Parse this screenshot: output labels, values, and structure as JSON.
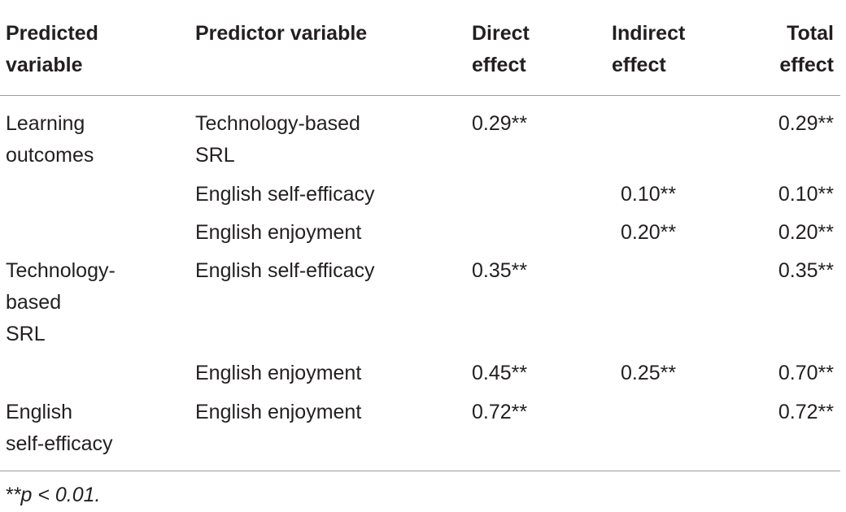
{
  "table": {
    "headers": {
      "predicted": "Predicted\nvariable",
      "predictor": "Predictor variable",
      "direct": "Direct\neffect",
      "indirect": "Indirect\neffect",
      "total": "Total\neffect"
    },
    "rows": [
      {
        "predicted": "Learning\noutcomes",
        "predictor": "Technology-based\nSRL",
        "direct": "0.29**",
        "indirect": "",
        "total": "0.29**"
      },
      {
        "predicted": "",
        "predictor": "English self-efficacy",
        "direct": "",
        "indirect": "0.10**",
        "total": "0.10**"
      },
      {
        "predicted": "",
        "predictor": "English enjoyment",
        "direct": "",
        "indirect": "0.20**",
        "total": "0.20**"
      },
      {
        "predicted": "Technology-\nbased\nSRL",
        "predictor": "English self-efficacy",
        "direct": "0.35**",
        "indirect": "",
        "total": "0.35**"
      },
      {
        "predicted": "",
        "predictor": "English enjoyment",
        "direct": "0.45**",
        "indirect": "0.25**",
        "total": "0.70**"
      },
      {
        "predicted": "English\nself-efficacy",
        "predictor": "English enjoyment",
        "direct": "0.72**",
        "indirect": "",
        "total": "0.72**"
      }
    ],
    "footnote": "**p < 0.01."
  }
}
